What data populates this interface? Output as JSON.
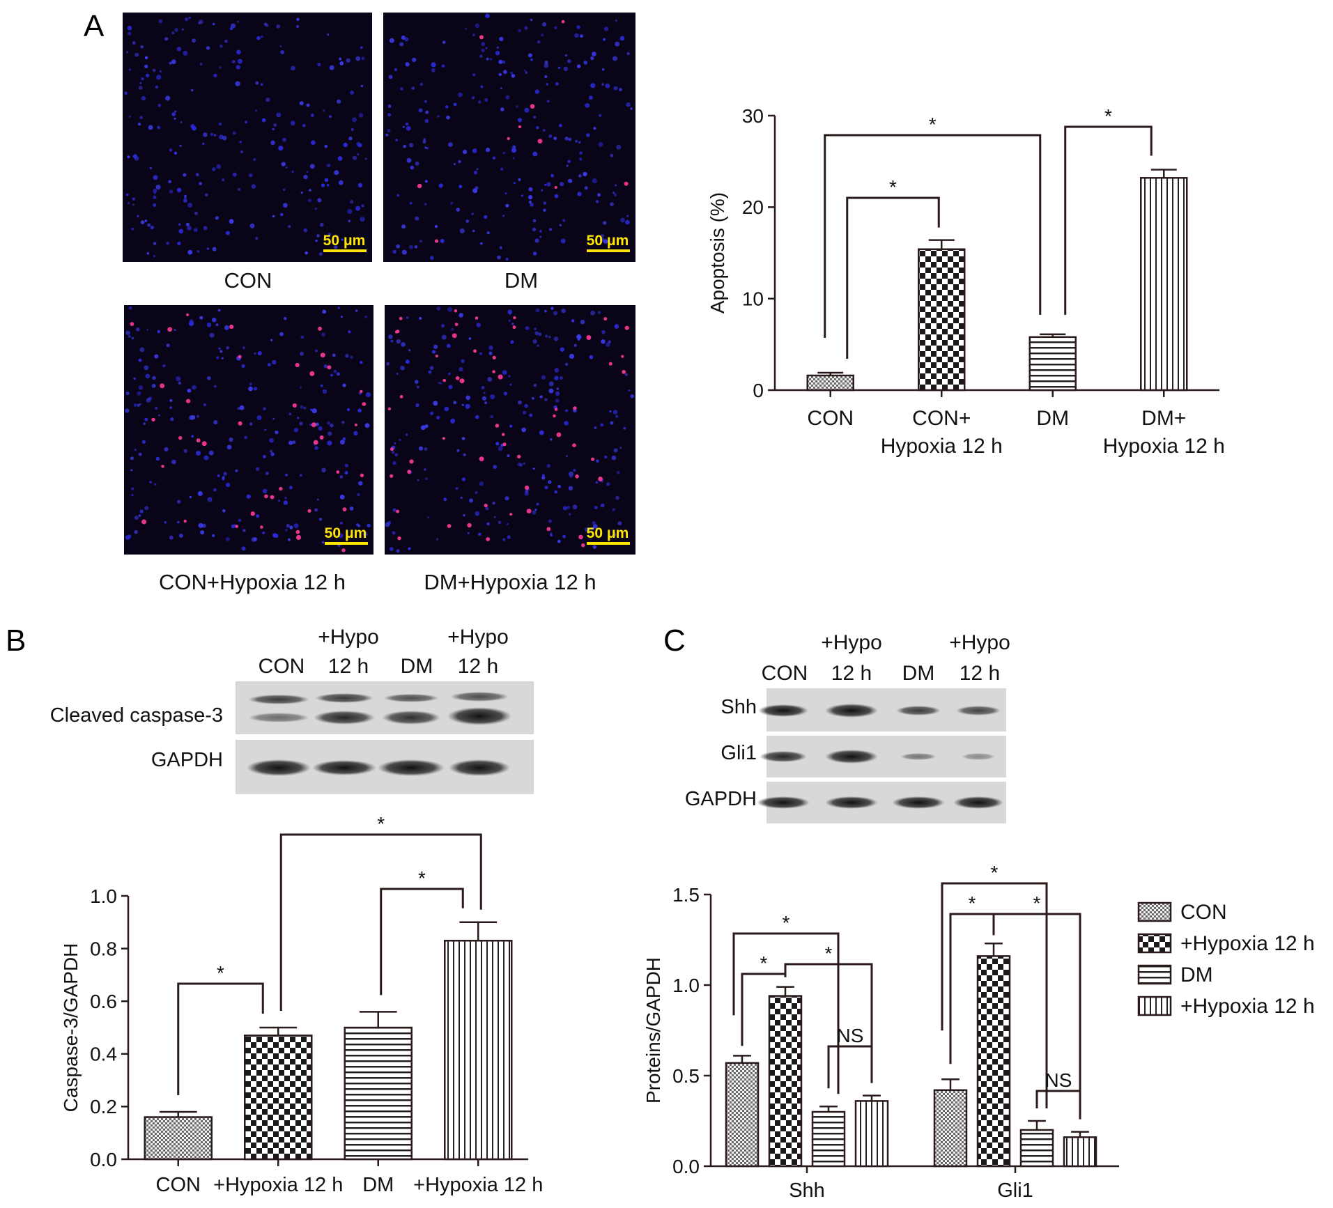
{
  "figure": {
    "panel_A": {
      "letter": "A",
      "micrographs": [
        {
          "caption": "CON",
          "scale_bar": "50 μm",
          "red_count": 0
        },
        {
          "caption": "DM",
          "scale_bar": "50 μm",
          "red_count": 10
        },
        {
          "caption": "CON+Hypoxia 12 h",
          "scale_bar": "50 μm",
          "red_count": 40
        },
        {
          "caption": "DM+Hypoxia 12 h",
          "scale_bar": "50 μm",
          "red_count": 55
        }
      ]
    },
    "panel_B": {
      "letter": "B",
      "blot": {
        "lanes": [
          {
            "top": "",
            "bottom": "CON"
          },
          {
            "top": "+Hypo",
            "bottom": "12 h"
          },
          {
            "top": "",
            "bottom": "DM"
          },
          {
            "top": "+Hypo",
            "bottom": "12 h"
          }
        ],
        "rows": [
          "Cleaved caspase-3",
          "GAPDH"
        ]
      }
    },
    "panel_C": {
      "letter": "C",
      "blot": {
        "lanes": [
          {
            "top": "",
            "bottom": "CON"
          },
          {
            "top": "+Hypo",
            "bottom": "12 h"
          },
          {
            "top": "",
            "bottom": "DM"
          },
          {
            "top": "+Hypo",
            "bottom": "12 h"
          }
        ],
        "rows": [
          "Shh",
          "Gli1",
          "GAPDH"
        ]
      },
      "legend": [
        "CON",
        "+Hypoxia 12 h",
        "DM",
        "+Hypoxia 12 h"
      ]
    }
  },
  "chart_data": [
    {
      "id": "A",
      "type": "bar",
      "categories": [
        [
          "CON"
        ],
        [
          "CON+",
          "Hypoxia 12 h"
        ],
        [
          "DM"
        ],
        [
          "DM+",
          "Hypoxia 12 h"
        ]
      ],
      "values": [
        1.6,
        15.4,
        5.8,
        23.2
      ],
      "errors": [
        0.3,
        1.0,
        0.3,
        0.9
      ],
      "patterns": [
        "fine",
        "checker",
        "hlines",
        "vlines"
      ],
      "ylabel": "Apoptosis (%)",
      "ylim": [
        0,
        30
      ],
      "yticks": [
        "0",
        "10",
        "20",
        "30"
      ],
      "significance": [
        {
          "from": 0,
          "to": 1,
          "label": "*"
        },
        {
          "from": 0,
          "to": 2,
          "label": "*"
        },
        {
          "from": 2,
          "to": 3,
          "label": "*"
        }
      ]
    },
    {
      "id": "B",
      "type": "bar",
      "categories": [
        [
          "CON"
        ],
        [
          "+Hypoxia 12 h"
        ],
        [
          "DM"
        ],
        [
          "+Hypoxia 12 h"
        ]
      ],
      "values": [
        0.16,
        0.47,
        0.5,
        0.83
      ],
      "errors": [
        0.02,
        0.03,
        0.06,
        0.07
      ],
      "patterns": [
        "fine",
        "checker",
        "hlines",
        "vlines"
      ],
      "ylabel": "Caspase-3/GAPDH",
      "ylim": [
        0,
        1.0
      ],
      "yticks": [
        "0.0",
        "0.2",
        "0.4",
        "0.6",
        "0.8",
        "1.0"
      ],
      "significance": [
        {
          "from": 0,
          "to": 1,
          "label": "*"
        },
        {
          "from": 1,
          "to": 3,
          "label": "*"
        },
        {
          "from": 2,
          "to": 3,
          "label": "*"
        }
      ]
    },
    {
      "id": "C",
      "type": "bar",
      "categories": [
        "Shh",
        "Gli1"
      ],
      "series": [
        {
          "name": "CON",
          "values": [
            0.57,
            0.42
          ],
          "errors": [
            0.04,
            0.06
          ],
          "pattern": "fine"
        },
        {
          "name": "+Hypoxia 12 h",
          "values": [
            0.94,
            1.16
          ],
          "errors": [
            0.05,
            0.07
          ],
          "pattern": "checker"
        },
        {
          "name": "DM",
          "values": [
            0.3,
            0.2
          ],
          "errors": [
            0.03,
            0.05
          ],
          "pattern": "hlines"
        },
        {
          "name": "+Hypoxia 12 h",
          "values": [
            0.36,
            0.16
          ],
          "errors": [
            0.03,
            0.03
          ],
          "pattern": "vlines"
        }
      ],
      "ylabel": "Proteins/GAPDH",
      "ylim": [
        0,
        1.5
      ],
      "yticks": [
        "0.0",
        "0.5",
        "1.0",
        "1.5"
      ],
      "significance": [
        {
          "group": 0,
          "from": 0,
          "to": 1,
          "label": "*"
        },
        {
          "group": 0,
          "from": 0,
          "to": 2,
          "label": "*"
        },
        {
          "group": 0,
          "from": 1,
          "to": 3,
          "label": "*"
        },
        {
          "group": 0,
          "from": 2,
          "to": 3,
          "label": "NS"
        },
        {
          "group": 1,
          "from": 0,
          "to": 1,
          "label": "*"
        },
        {
          "group": 1,
          "from": 0,
          "to": 2,
          "label": "*"
        },
        {
          "group": 1,
          "from": 1,
          "to": 3,
          "label": "*"
        },
        {
          "group": 1,
          "from": 2,
          "to": 3,
          "label": "NS"
        }
      ]
    }
  ]
}
